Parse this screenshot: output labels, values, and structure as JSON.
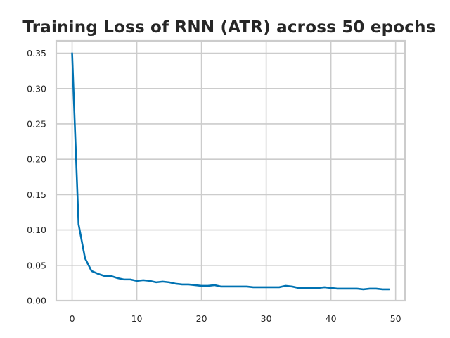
{
  "chart_data": {
    "type": "line",
    "title": "Training Loss of RNN (ATR) across 50 epochs",
    "xlabel": "",
    "ylabel": "",
    "xlim": [
      -2.45,
      51.45
    ],
    "ylim": [
      0.0,
      0.3675
    ],
    "xticks": [
      0,
      10,
      20,
      30,
      40,
      50
    ],
    "yticks": [
      0.0,
      0.05,
      0.1,
      0.15,
      0.2,
      0.25,
      0.3,
      0.35
    ],
    "ytick_labels": [
      "0.00",
      "0.05",
      "0.10",
      "0.15",
      "0.20",
      "0.25",
      "0.30",
      "0.35"
    ],
    "grid": true,
    "legend": "none",
    "series": [
      {
        "color": "#0072b2",
        "x": [
          0,
          1,
          2,
          3,
          4,
          5,
          6,
          7,
          8,
          9,
          10,
          11,
          12,
          13,
          14,
          15,
          16,
          17,
          18,
          19,
          20,
          21,
          22,
          23,
          24,
          25,
          26,
          27,
          28,
          29,
          30,
          31,
          32,
          33,
          34,
          35,
          36,
          37,
          38,
          39,
          40,
          41,
          42,
          43,
          44,
          45,
          46,
          47,
          48,
          49
        ],
        "values": [
          0.35,
          0.108,
          0.06,
          0.042,
          0.038,
          0.035,
          0.035,
          0.032,
          0.03,
          0.03,
          0.028,
          0.029,
          0.028,
          0.026,
          0.027,
          0.026,
          0.024,
          0.023,
          0.023,
          0.022,
          0.021,
          0.021,
          0.022,
          0.02,
          0.02,
          0.02,
          0.02,
          0.02,
          0.019,
          0.019,
          0.019,
          0.019,
          0.019,
          0.021,
          0.02,
          0.018,
          0.018,
          0.018,
          0.018,
          0.019,
          0.018,
          0.017,
          0.017,
          0.017,
          0.017,
          0.016,
          0.017,
          0.017,
          0.016,
          0.016
        ]
      }
    ]
  }
}
